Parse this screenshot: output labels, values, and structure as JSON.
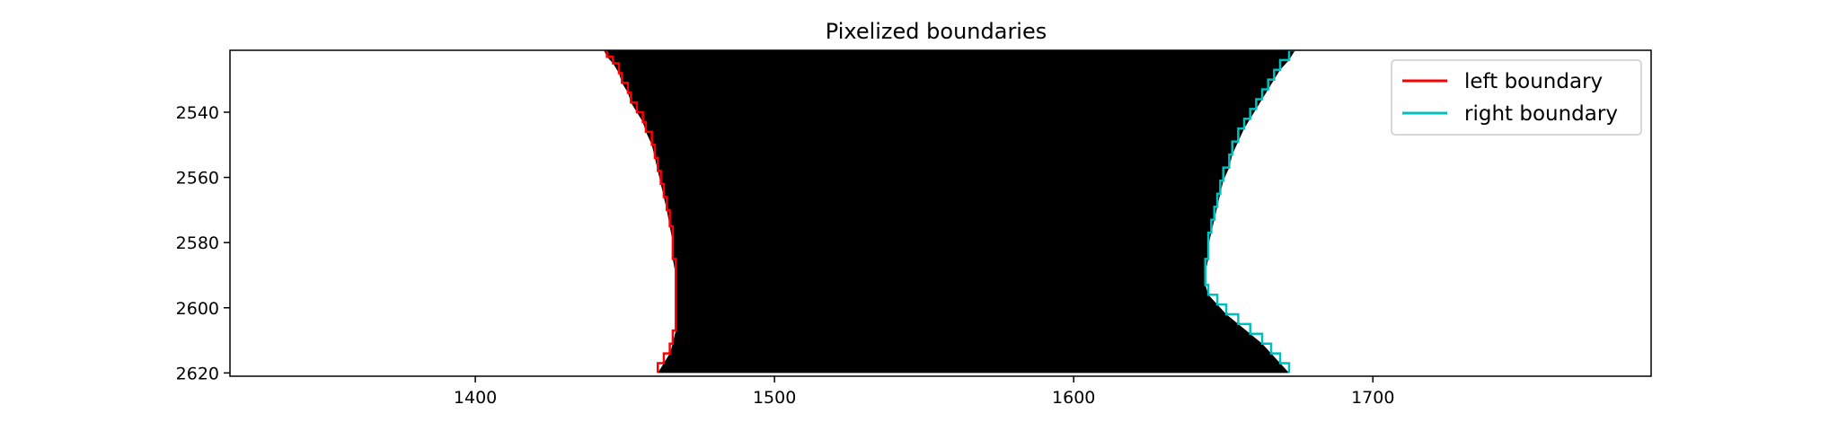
{
  "chart_data": {
    "type": "line",
    "title": "Pixelized boundaries",
    "xlabel": "",
    "ylabel": "",
    "xlim": [
      1318,
      1793
    ],
    "ylim": [
      2621,
      2521
    ],
    "y_inverted": true,
    "x_ticks": [
      1400,
      1500,
      1600,
      1700
    ],
    "y_ticks": [
      2540,
      2560,
      2580,
      2600,
      2620
    ],
    "grid": false,
    "legend_position": "top-right",
    "background_image": {
      "description_free": true,
      "fill_color": "#000000",
      "region_between": [
        "left boundary",
        "right boundary"
      ]
    },
    "series": [
      {
        "name": "left boundary",
        "color": "#ff0000",
        "points": [
          [
            1443,
            2521
          ],
          [
            1444,
            2523
          ],
          [
            1446,
            2525
          ],
          [
            1448,
            2528
          ],
          [
            1449,
            2531
          ],
          [
            1451,
            2534
          ],
          [
            1452,
            2537
          ],
          [
            1454,
            2540
          ],
          [
            1456,
            2543
          ],
          [
            1457,
            2546
          ],
          [
            1459,
            2550
          ],
          [
            1460,
            2554
          ],
          [
            1461,
            2558
          ],
          [
            1462,
            2562
          ],
          [
            1463,
            2566
          ],
          [
            1464,
            2570
          ],
          [
            1465,
            2575
          ],
          [
            1466,
            2580
          ],
          [
            1466,
            2585
          ],
          [
            1467,
            2590
          ],
          [
            1467,
            2596
          ],
          [
            1467,
            2601
          ],
          [
            1467,
            2607
          ],
          [
            1466,
            2611
          ],
          [
            1465,
            2614
          ],
          [
            1463,
            2617
          ],
          [
            1461,
            2620
          ]
        ]
      },
      {
        "name": "right boundary",
        "color": "#00bfbf",
        "points": [
          [
            1674,
            2521
          ],
          [
            1672,
            2524
          ],
          [
            1669,
            2527
          ],
          [
            1667,
            2530
          ],
          [
            1665,
            2533
          ],
          [
            1663,
            2536
          ],
          [
            1661,
            2539
          ],
          [
            1659,
            2542
          ],
          [
            1657,
            2545
          ],
          [
            1655,
            2549
          ],
          [
            1653,
            2553
          ],
          [
            1652,
            2557
          ],
          [
            1650,
            2561
          ],
          [
            1649,
            2565
          ],
          [
            1648,
            2569
          ],
          [
            1647,
            2573
          ],
          [
            1646,
            2577
          ],
          [
            1645,
            2581
          ],
          [
            1645,
            2585
          ],
          [
            1644,
            2589
          ],
          [
            1644,
            2593
          ],
          [
            1645,
            2596
          ],
          [
            1648,
            2599
          ],
          [
            1651,
            2602
          ],
          [
            1655,
            2605
          ],
          [
            1659,
            2608
          ],
          [
            1663,
            2611
          ],
          [
            1666,
            2614
          ],
          [
            1669,
            2617
          ],
          [
            1672,
            2620
          ]
        ]
      }
    ]
  }
}
